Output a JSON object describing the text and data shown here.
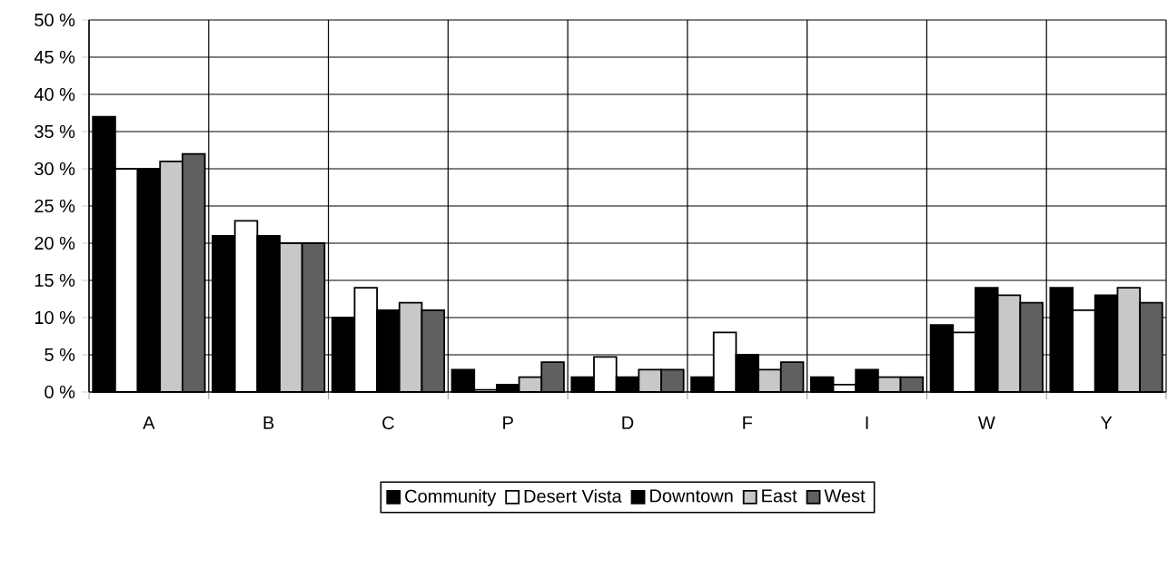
{
  "chart_data": {
    "type": "bar",
    "categories": [
      "A",
      "B",
      "C",
      "P",
      "D",
      "F",
      "I",
      "W",
      "Y"
    ],
    "series": [
      {
        "name": "Community",
        "color": "#000000",
        "values": [
          37,
          21,
          10,
          3,
          2,
          2,
          2,
          9,
          14
        ]
      },
      {
        "name": "Desert Vista",
        "color": "#ffffff",
        "values": [
          30,
          23,
          14,
          0.3,
          4.7,
          8,
          1,
          8,
          11
        ]
      },
      {
        "name": "Downtown",
        "color": "#000000",
        "values": [
          30,
          21,
          11,
          1,
          2,
          5,
          3,
          14,
          13
        ]
      },
      {
        "name": "East",
        "color": "#c8c8c8",
        "values": [
          31,
          20,
          12,
          2,
          3,
          3,
          2,
          13,
          14
        ]
      },
      {
        "name": "West",
        "color": "#606060",
        "values": [
          32,
          20,
          11,
          4,
          3,
          4,
          2,
          12,
          12
        ]
      }
    ],
    "ylim": [
      0,
      50
    ],
    "yticks": [
      {
        "value": 0,
        "label": "0 %"
      },
      {
        "value": 5,
        "label": "5 %"
      },
      {
        "value": 10,
        "label": "10 %"
      },
      {
        "value": 15,
        "label": "15 %"
      },
      {
        "value": 20,
        "label": "20 %"
      },
      {
        "value": 25,
        "label": "25 %"
      },
      {
        "value": 30,
        "label": "30 %"
      },
      {
        "value": 35,
        "label": "35 %"
      },
      {
        "value": 40,
        "label": "40 %"
      },
      {
        "value": 45,
        "label": "45 %"
      },
      {
        "value": 50,
        "label": "50 %"
      }
    ],
    "grid": true,
    "legend": "bottom"
  }
}
